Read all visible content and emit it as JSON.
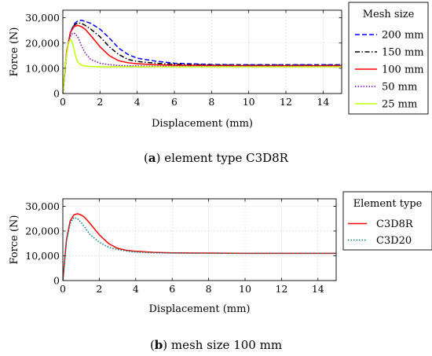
{
  "chart_data": [
    {
      "type": "line",
      "caption": {
        "letter": "a",
        "text": " element type C3D8R"
      },
      "xlabel": "Displacement (mm)",
      "ylabel": "Force (N)",
      "xlim": [
        0,
        15
      ],
      "ylim": [
        0,
        33000
      ],
      "xticks": [
        0,
        2,
        4,
        6,
        8,
        10,
        12,
        14
      ],
      "yticks": [
        0,
        10000,
        20000,
        30000
      ],
      "ytick_labels": [
        "0",
        "10,000",
        "20,000",
        "30,000"
      ],
      "grid": true,
      "legend": {
        "title": "Mesh size",
        "placement": "outside-right"
      },
      "series": [
        {
          "name": "200 mm",
          "color": "#0000ff",
          "dash": "dashed",
          "x": [
            0,
            0.2,
            0.4,
            0.6,
            0.8,
            1.0,
            1.2,
            1.5,
            2.0,
            2.5,
            3.0,
            3.5,
            4.0,
            5.0,
            6.0,
            8.0,
            10.0,
            12.0,
            15.0
          ],
          "y": [
            0,
            16000,
            24000,
            27500,
            28800,
            29000,
            28600,
            27800,
            25500,
            22000,
            18000,
            15500,
            14000,
            12800,
            12000,
            11500,
            11400,
            11400,
            11400
          ]
        },
        {
          "name": "150 mm",
          "color": "#000000",
          "dash": "dashdot",
          "x": [
            0,
            0.2,
            0.4,
            0.6,
            0.8,
            1.0,
            1.2,
            1.5,
            2.0,
            2.5,
            3.0,
            3.5,
            4.0,
            5.0,
            6.0,
            8.0,
            10.0,
            12.0,
            15.0
          ],
          "y": [
            0,
            16000,
            24000,
            27000,
            28000,
            27800,
            27000,
            25500,
            22500,
            18500,
            15500,
            13500,
            12700,
            12000,
            11600,
            11300,
            11200,
            11200,
            11200
          ]
        },
        {
          "name": "100 mm",
          "color": "#ff0000",
          "dash": "solid",
          "x": [
            0,
            0.2,
            0.4,
            0.6,
            0.8,
            1.0,
            1.2,
            1.5,
            2.0,
            2.5,
            3.0,
            3.5,
            4.0,
            5.0,
            6.0,
            8.0,
            10.0,
            12.0,
            15.0
          ],
          "y": [
            0,
            16500,
            24000,
            26500,
            27000,
            26500,
            25500,
            23000,
            18500,
            15000,
            13000,
            12200,
            11800,
            11400,
            11200,
            11100,
            11000,
            11000,
            11000
          ]
        },
        {
          "name": "50 mm",
          "color": "#7f00bf",
          "dash": "dotted",
          "x": [
            0,
            0.15,
            0.3,
            0.45,
            0.6,
            0.8,
            1.0,
            1.2,
            1.5,
            2.0,
            2.5,
            3.0,
            4.0,
            6.0,
            10.0,
            15.0
          ],
          "y": [
            0,
            12500,
            20000,
            23500,
            24000,
            22500,
            19000,
            16000,
            13500,
            12000,
            11400,
            11100,
            10900,
            10800,
            10800,
            10800
          ]
        },
        {
          "name": "25 mm",
          "color": "#bfff00",
          "dash": "solid",
          "x": [
            0,
            0.1,
            0.2,
            0.3,
            0.4,
            0.5,
            0.6,
            0.7,
            0.8,
            1.0,
            1.2,
            1.5,
            2.0,
            3.0,
            5.0,
            10.0,
            15.0
          ],
          "y": [
            0,
            9000,
            15500,
            20000,
            21500,
            20500,
            17500,
            14500,
            12500,
            11200,
            10900,
            10700,
            10600,
            10600,
            10600,
            10600,
            10600
          ]
        }
      ]
    },
    {
      "type": "line",
      "caption": {
        "letter": "b",
        "text": " mesh size 100 mm"
      },
      "xlabel": "Displacement (mm)",
      "ylabel": "Force (N)",
      "xlim": [
        0,
        15
      ],
      "ylim": [
        0,
        33000
      ],
      "xticks": [
        0,
        2,
        4,
        6,
        8,
        10,
        12,
        14
      ],
      "yticks": [
        0,
        10000,
        20000,
        30000
      ],
      "ytick_labels": [
        "0",
        "10,000",
        "20,000",
        "30,000"
      ],
      "grid": true,
      "legend": {
        "title": "Element type",
        "placement": "outside-right"
      },
      "series": [
        {
          "name": "C3D8R",
          "color": "#ff0000",
          "dash": "solid",
          "x": [
            0,
            0.2,
            0.4,
            0.6,
            0.8,
            1.0,
            1.2,
            1.5,
            2.0,
            2.5,
            3.0,
            3.5,
            4.0,
            5.0,
            6.0,
            8.0,
            10.0,
            12.0,
            15.0
          ],
          "y": [
            0,
            16500,
            24000,
            26500,
            27000,
            26500,
            25500,
            23000,
            18500,
            15000,
            13000,
            12200,
            11800,
            11400,
            11200,
            11100,
            11000,
            11000,
            11000
          ]
        },
        {
          "name": "C3D20",
          "color": "#008080",
          "dash": "dotted",
          "x": [
            0,
            0.2,
            0.4,
            0.6,
            0.8,
            1.0,
            1.2,
            1.5,
            2.0,
            2.5,
            3.0,
            3.5,
            4.0,
            5.0,
            6.0,
            8.0,
            10.0,
            12.0,
            15.0
          ],
          "y": [
            0,
            16000,
            23000,
            25500,
            25000,
            23500,
            21500,
            18500,
            15500,
            13500,
            12500,
            11900,
            11500,
            11200,
            11100,
            11000,
            11000,
            11000,
            11000
          ]
        }
      ]
    }
  ]
}
